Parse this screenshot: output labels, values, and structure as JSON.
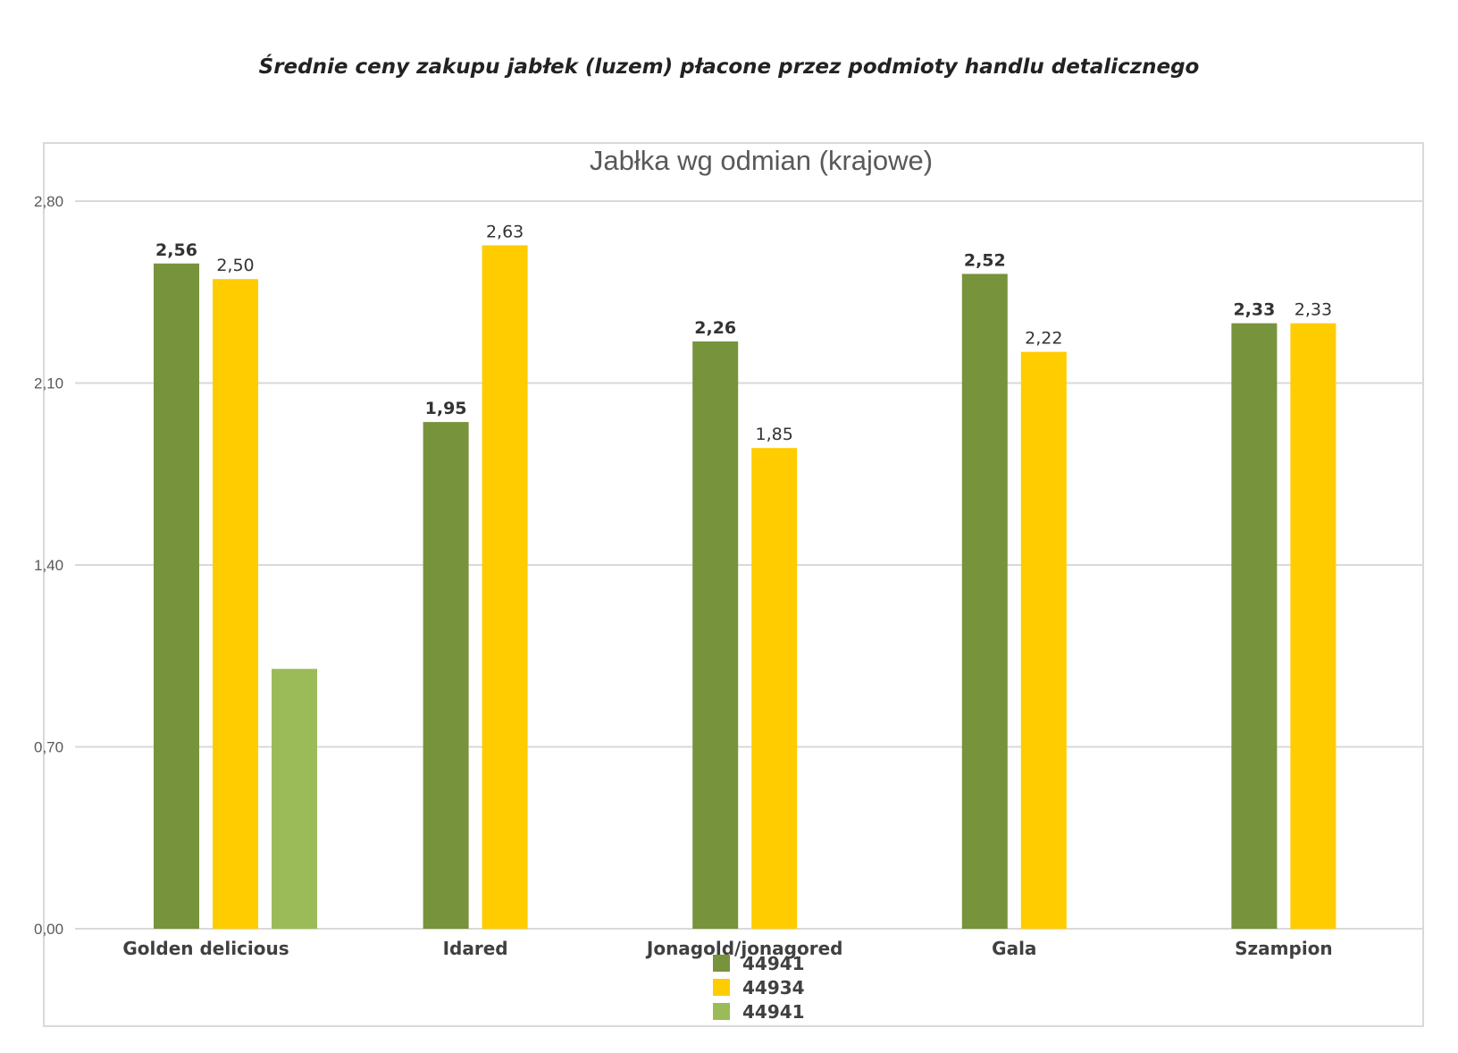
{
  "page": {
    "title": "Średnie ceny zakupu jabłek (luzem) płacone przez podmioty handlu detalicznego"
  },
  "chart_data": {
    "type": "bar",
    "title": "Jabłka wg odmian (krajowe)",
    "xlabel": "",
    "ylabel": "",
    "ylim": [
      0,
      2.8
    ],
    "yticks": [
      "0,00",
      "0,70",
      "1,40",
      "2,10",
      "2,80"
    ],
    "ytick_values": [
      0,
      0.7,
      1.4,
      2.1,
      2.8
    ],
    "grid": true,
    "legend_position": "bottom",
    "categories": [
      "Golden delicious",
      "Idared",
      "Jonagold/jonagored",
      "Gala",
      "Szampion"
    ],
    "series": [
      {
        "name": "44941",
        "color": "#77933c",
        "values": [
          2.56,
          1.95,
          2.26,
          2.52,
          2.33
        ],
        "labels": [
          "2,56",
          "1,95",
          "2,26",
          "2,52",
          "2,33"
        ],
        "label_bold": true
      },
      {
        "name": "44934",
        "color": "#ffcc00",
        "values": [
          2.5,
          2.63,
          1.85,
          2.22,
          2.33
        ],
        "labels": [
          "2,50",
          "2,63",
          "1,85",
          "2,22",
          "2,33"
        ],
        "label_bold": false
      },
      {
        "name": "44941",
        "color": "#9bbb59",
        "values": [
          1.0,
          null,
          null,
          null,
          null
        ],
        "labels": [
          null,
          null,
          null,
          null,
          null
        ],
        "label_bold": false
      }
    ]
  }
}
